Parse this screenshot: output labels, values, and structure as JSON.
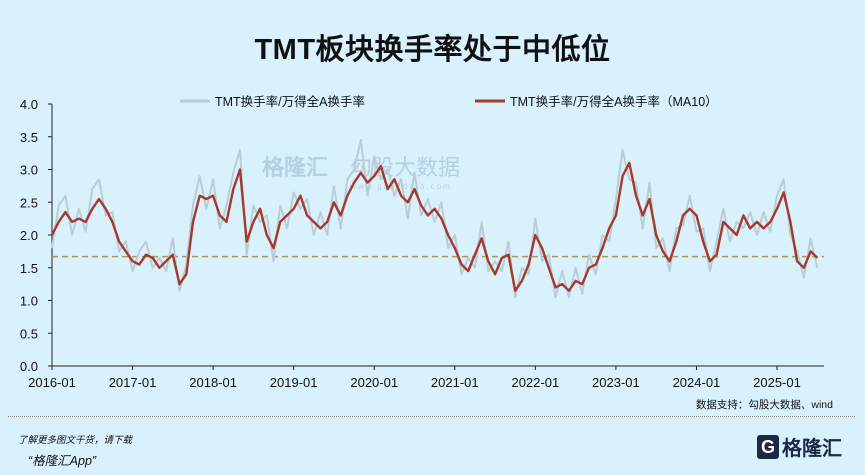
{
  "title": "TMT板块换手率处于中低位",
  "watermark": {
    "brand": "格隆汇",
    "brand2": "勾股大数据",
    "url": "www.gogudata.com"
  },
  "source": "数据支持：勾股大数据、wind",
  "footer": {
    "promo_line1": "了解更多图文干货，请下载",
    "promo_line2": "“格隆汇App”",
    "logo_text": "格隆汇"
  },
  "chart_data": {
    "type": "line",
    "title": "TMT板块换手率处于中低位",
    "ylim": [
      0,
      4.0
    ],
    "yticks": [
      "0.0",
      "0.5",
      "1.0",
      "1.5",
      "2.0",
      "2.5",
      "3.0",
      "3.5",
      "4.0"
    ],
    "xticks": [
      "2016-01",
      "2017-01",
      "2018-01",
      "2019-01",
      "2020-01",
      "2021-01",
      "2022-01",
      "2023-01",
      "2024-01",
      "2025-01"
    ],
    "xrange": [
      "2016-01",
      "2025-08"
    ],
    "grid": false,
    "legend_placement": "top",
    "reference_line": {
      "value": 1.67,
      "style": "dashed",
      "color": "#a89a5a"
    },
    "x": [
      "2016-01",
      "2016-02",
      "2016-03",
      "2016-04",
      "2016-05",
      "2016-06",
      "2016-07",
      "2016-08",
      "2016-09",
      "2016-10",
      "2016-11",
      "2016-12",
      "2017-01",
      "2017-02",
      "2017-03",
      "2017-04",
      "2017-05",
      "2017-06",
      "2017-07",
      "2017-08",
      "2017-09",
      "2017-10",
      "2017-11",
      "2017-12",
      "2018-01",
      "2018-02",
      "2018-03",
      "2018-04",
      "2018-05",
      "2018-06",
      "2018-07",
      "2018-08",
      "2018-09",
      "2018-10",
      "2018-11",
      "2018-12",
      "2019-01",
      "2019-02",
      "2019-03",
      "2019-04",
      "2019-05",
      "2019-06",
      "2019-07",
      "2019-08",
      "2019-09",
      "2019-10",
      "2019-11",
      "2019-12",
      "2020-01",
      "2020-02",
      "2020-03",
      "2020-04",
      "2020-05",
      "2020-06",
      "2020-07",
      "2020-08",
      "2020-09",
      "2020-10",
      "2020-11",
      "2020-12",
      "2021-01",
      "2021-02",
      "2021-03",
      "2021-04",
      "2021-05",
      "2021-06",
      "2021-07",
      "2021-08",
      "2021-09",
      "2021-10",
      "2021-11",
      "2021-12",
      "2022-01",
      "2022-02",
      "2022-03",
      "2022-04",
      "2022-05",
      "2022-06",
      "2022-07",
      "2022-08",
      "2022-09",
      "2022-10",
      "2022-11",
      "2022-12",
      "2023-01",
      "2023-02",
      "2023-03",
      "2023-04",
      "2023-05",
      "2023-06",
      "2023-07",
      "2023-08",
      "2023-09",
      "2023-10",
      "2023-11",
      "2023-12",
      "2024-01",
      "2024-02",
      "2024-03",
      "2024-04",
      "2024-05",
      "2024-06",
      "2024-07",
      "2024-08",
      "2024-09",
      "2024-10",
      "2024-11",
      "2024-12",
      "2025-01",
      "2025-02",
      "2025-03",
      "2025-04",
      "2025-05",
      "2025-06",
      "2025-07"
    ],
    "series": [
      {
        "name": "TMT换手率/万得全A换手率",
        "color": "#b9cdd8",
        "values": [
          1.8,
          2.45,
          2.6,
          2.0,
          2.4,
          2.05,
          2.7,
          2.85,
          2.3,
          2.35,
          1.75,
          1.9,
          1.45,
          1.75,
          1.9,
          1.5,
          1.65,
          1.45,
          1.95,
          1.15,
          1.55,
          2.45,
          2.9,
          2.4,
          2.85,
          2.1,
          2.45,
          2.95,
          3.3,
          1.7,
          2.45,
          2.2,
          2.3,
          1.6,
          2.45,
          2.1,
          2.65,
          2.4,
          2.55,
          2.0,
          2.35,
          2.0,
          2.75,
          2.1,
          2.85,
          3.0,
          3.45,
          2.6,
          3.2,
          2.85,
          3.0,
          2.6,
          2.85,
          2.25,
          2.95,
          2.3,
          2.55,
          2.2,
          2.5,
          1.8,
          2.0,
          1.4,
          1.65,
          1.5,
          2.2,
          1.45,
          1.6,
          1.45,
          1.9,
          1.05,
          1.5,
          1.4,
          2.25,
          1.6,
          1.7,
          1.05,
          1.45,
          1.05,
          1.5,
          1.1,
          1.7,
          1.4,
          2.0,
          1.9,
          2.55,
          3.3,
          2.85,
          2.8,
          2.1,
          2.8,
          1.8,
          1.95,
          1.45,
          2.1,
          2.15,
          2.6,
          2.05,
          2.1,
          1.45,
          1.9,
          2.4,
          1.9,
          2.2,
          2.1,
          2.35,
          2.0,
          2.35,
          2.05,
          2.6,
          2.85,
          2.0,
          1.75,
          1.35,
          1.95,
          1.5
        ]
      },
      {
        "name": "TMT换手率/万得全A换手率（MA10）",
        "color": "#a5392c",
        "values": [
          2.0,
          2.2,
          2.35,
          2.2,
          2.25,
          2.2,
          2.4,
          2.55,
          2.4,
          2.2,
          1.9,
          1.75,
          1.6,
          1.55,
          1.7,
          1.65,
          1.5,
          1.6,
          1.7,
          1.25,
          1.4,
          2.2,
          2.6,
          2.55,
          2.6,
          2.3,
          2.2,
          2.7,
          3.0,
          1.9,
          2.2,
          2.4,
          2.0,
          1.8,
          2.2,
          2.3,
          2.4,
          2.6,
          2.3,
          2.2,
          2.1,
          2.2,
          2.5,
          2.3,
          2.6,
          2.8,
          2.95,
          2.8,
          2.9,
          3.05,
          2.7,
          2.85,
          2.6,
          2.5,
          2.7,
          2.45,
          2.3,
          2.4,
          2.25,
          2.0,
          1.8,
          1.55,
          1.45,
          1.7,
          1.95,
          1.6,
          1.4,
          1.65,
          1.7,
          1.15,
          1.3,
          1.55,
          2.0,
          1.8,
          1.5,
          1.2,
          1.25,
          1.15,
          1.3,
          1.25,
          1.5,
          1.55,
          1.8,
          2.1,
          2.3,
          2.9,
          3.1,
          2.6,
          2.3,
          2.55,
          2.0,
          1.75,
          1.6,
          1.9,
          2.3,
          2.4,
          2.3,
          1.9,
          1.6,
          1.7,
          2.2,
          2.1,
          2.0,
          2.3,
          2.1,
          2.2,
          2.1,
          2.2,
          2.4,
          2.65,
          2.2,
          1.6,
          1.5,
          1.75,
          1.65
        ]
      }
    ]
  }
}
